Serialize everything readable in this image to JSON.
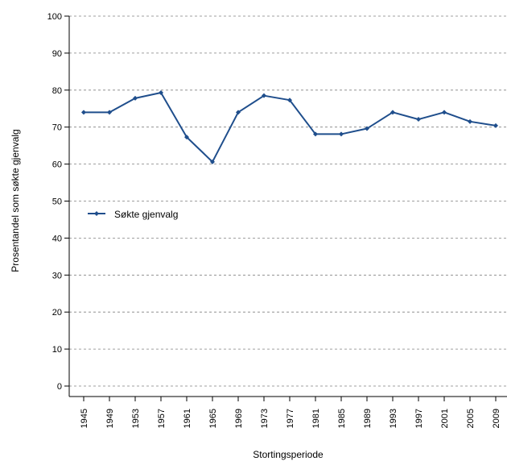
{
  "chart_data": {
    "type": "line",
    "title": "",
    "xlabel": "Stortingsperiode",
    "ylabel": "Prosentandel som søkte gjenvalg",
    "ylim": [
      0,
      100
    ],
    "yticks": [
      0,
      10,
      20,
      30,
      40,
      50,
      60,
      70,
      80,
      90,
      100
    ],
    "grid": true,
    "legend_position": "left-middle",
    "categories": [
      "1945",
      "1949",
      "1953",
      "1957",
      "1961",
      "1965",
      "1969",
      "1973",
      "1977",
      "1981",
      "1985",
      "1989",
      "1993",
      "1997",
      "2001",
      "2005",
      "2009"
    ],
    "series": [
      {
        "name": "Søkte gjenvalg",
        "color": "#1f4e8c",
        "marker": "diamond",
        "values": [
          74.0,
          74.0,
          77.8,
          79.3,
          67.3,
          60.6,
          74.0,
          78.5,
          77.3,
          68.1,
          68.1,
          69.6,
          74.0,
          72.1,
          74.0,
          71.5,
          70.4
        ]
      }
    ]
  }
}
